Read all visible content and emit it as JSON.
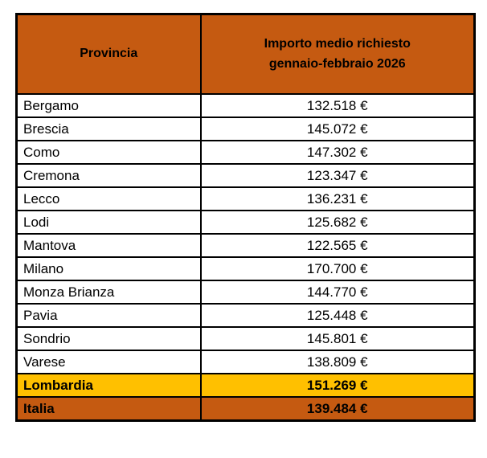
{
  "colors": {
    "header_bg": "#C55A11",
    "lombardia_row_bg": "#FFC000",
    "italia_row_bg": "#C55A11",
    "border": "#000000",
    "text": "#000000",
    "data_row_bg": "#FFFFFF"
  },
  "header": {
    "col1": "Provincia",
    "col2": "Importo medio richiesto\ngennaio-febbraio 2026"
  },
  "chart_data": {
    "type": "table",
    "title": "Importo medio richiesto gennaio-febbraio 2026",
    "columns": [
      "Provincia",
      "Importo medio richiesto gennaio-febbraio 2026"
    ],
    "currency": "EUR",
    "rows": [
      {
        "provincia": "Bergamo",
        "importo": "132.518 €",
        "value_eur": 132518,
        "style": "normal"
      },
      {
        "provincia": "Brescia",
        "importo": "145.072 €",
        "value_eur": 145072,
        "style": "normal"
      },
      {
        "provincia": "Como",
        "importo": "147.302 €",
        "value_eur": 147302,
        "style": "normal"
      },
      {
        "provincia": "Cremona",
        "importo": "123.347 €",
        "value_eur": 123347,
        "style": "normal"
      },
      {
        "provincia": "Lecco",
        "importo": "136.231 €",
        "value_eur": 136231,
        "style": "normal"
      },
      {
        "provincia": "Lodi",
        "importo": "125.682 €",
        "value_eur": 125682,
        "style": "normal"
      },
      {
        "provincia": "Mantova",
        "importo": "122.565 €",
        "value_eur": 122565,
        "style": "normal"
      },
      {
        "provincia": "Milano",
        "importo": "170.700 €",
        "value_eur": 170700,
        "style": "normal"
      },
      {
        "provincia": "Monza Brianza",
        "importo": "144.770 €",
        "value_eur": 144770,
        "style": "normal"
      },
      {
        "provincia": "Pavia",
        "importo": "125.448 €",
        "value_eur": 125448,
        "style": "normal"
      },
      {
        "provincia": "Sondrio",
        "importo": "145.801 €",
        "value_eur": 145801,
        "style": "normal"
      },
      {
        "provincia": "Varese",
        "importo": "138.809 €",
        "value_eur": 138809,
        "style": "normal"
      },
      {
        "provincia": "Lombardia",
        "importo": "151.269 €",
        "value_eur": 151269,
        "style": "highlight-gold"
      },
      {
        "provincia": "Italia",
        "importo": "139.484 €",
        "value_eur": 139484,
        "style": "highlight-orange"
      }
    ]
  }
}
